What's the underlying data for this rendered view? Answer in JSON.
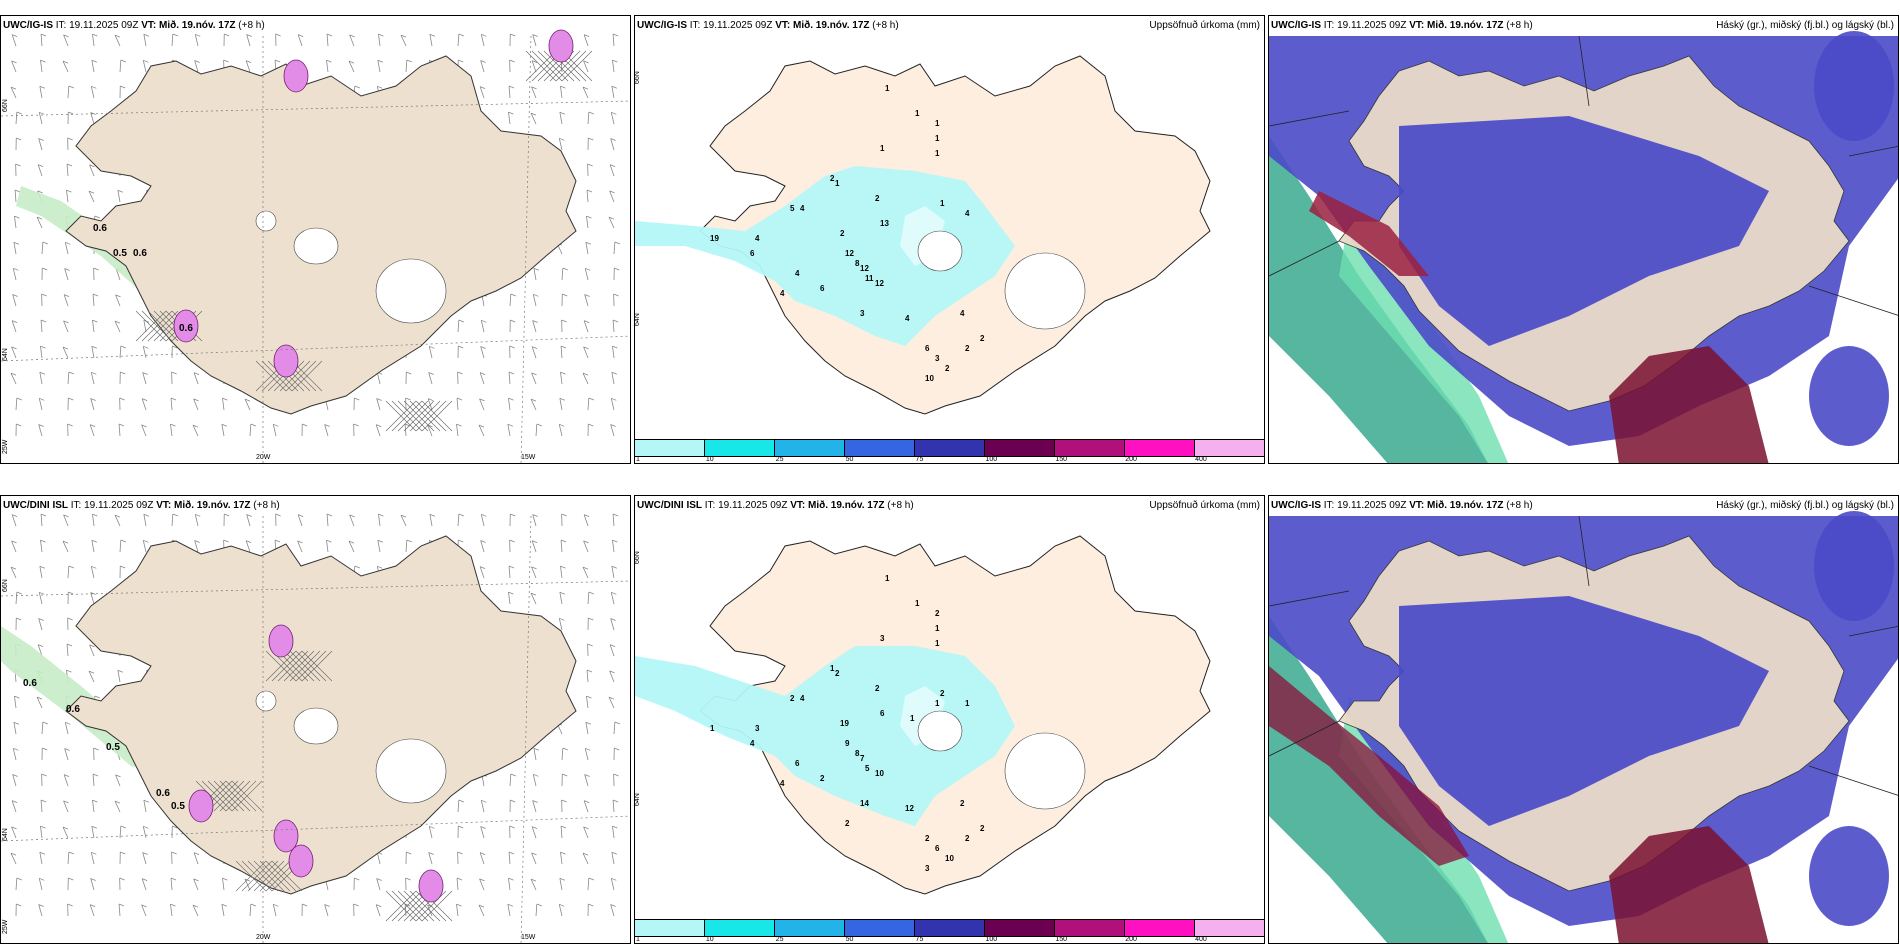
{
  "panels": {
    "p1": {
      "model": "UWC/IG-IS",
      "it_label": "IT:",
      "it": "19.11.2025 09Z",
      "vt_label": "VT:",
      "vt": "Mið. 19.nóv. 17Z",
      "lead": "(+8 h)",
      "right": ""
    },
    "p2": {
      "model": "UWC/IG-IS",
      "it_label": "IT:",
      "it": "19.11.2025 09Z",
      "vt_label": "VT:",
      "vt": "Mið. 19.nóv. 17Z",
      "lead": "(+8 h)",
      "right": "Uppsöfnuð úrkoma (mm)"
    },
    "p3": {
      "model": "UWC/IG-IS",
      "it_label": "IT:",
      "it": "19.11.2025 09Z",
      "vt_label": "VT:",
      "vt": "Mið. 19.nóv. 17Z",
      "lead": "(+8 h)",
      "right": "Háský (gr.), miðský (fj.bl.) og lágský (bl.)"
    },
    "p4": {
      "model": "UWC/DINI ISL",
      "it_label": "IT:",
      "it": "19.11.2025 09Z",
      "vt_label": "VT:",
      "vt": "Mið. 19.nóv. 17Z",
      "lead": "(+8 h)",
      "right": ""
    },
    "p5": {
      "model": "UWC/DINI ISL",
      "it_label": "IT:",
      "it": "19.11.2025 09Z",
      "vt_label": "VT:",
      "vt": "Mið. 19.nóv. 17Z",
      "lead": "(+8 h)",
      "right": "Uppsöfnuð úrkoma (mm)"
    },
    "p6": {
      "model": "UWC/IG-IS",
      "it_label": "IT:",
      "it": "19.11.2025 09Z",
      "vt_label": "VT:",
      "vt": "Mið. 19.nóv. 17Z",
      "lead": "(+8 h)",
      "right": "Háský (gr.), miðský (fj.bl.) og lágský (bl.)"
    }
  },
  "axes": {
    "lon1": "20W",
    "lon2": "15W",
    "lon0": "25W",
    "lat1": "66N",
    "lat2": "64N"
  },
  "colorbar": {
    "ticks": [
      "1",
      "10",
      "25",
      "50",
      "75",
      "100",
      "150",
      "200",
      "400"
    ],
    "colors": [
      "#b4f7f7",
      "#19e6e6",
      "#22b4e8",
      "#3366e0",
      "#3333b0",
      "#6b0050",
      "#b0107a",
      "#ff10c0",
      "#f5b0f0"
    ]
  },
  "contour_labels_top": [
    "0.6",
    "0.5",
    "0.6",
    "0.6"
  ],
  "contour_labels_bottom": [
    "0.6",
    "0.6",
    "0.5",
    "0.6",
    "0.5"
  ],
  "precip_top": [
    "1",
    "1",
    "1",
    "1",
    "1",
    "1",
    "2",
    "1",
    "2",
    "1",
    "4",
    "5",
    "19",
    "4",
    "6",
    "4",
    "4",
    "6",
    "12",
    "11",
    "13",
    "3",
    "4",
    "2",
    "12",
    "8",
    "12",
    "4",
    "2",
    "2",
    "6",
    "3",
    "2",
    "10",
    "4"
  ],
  "precip_bottom": [
    "1",
    "1",
    "2",
    "1",
    "1",
    "2",
    "2",
    "3",
    "1",
    "2",
    "4",
    "2",
    "1",
    "3",
    "4",
    "6",
    "4",
    "2",
    "7",
    "5",
    "6",
    "14",
    "12",
    "19",
    "9",
    "8",
    "10",
    "2",
    "2",
    "2",
    "2",
    "6",
    "10",
    "3",
    "1",
    "1",
    "1",
    "2"
  ]
}
